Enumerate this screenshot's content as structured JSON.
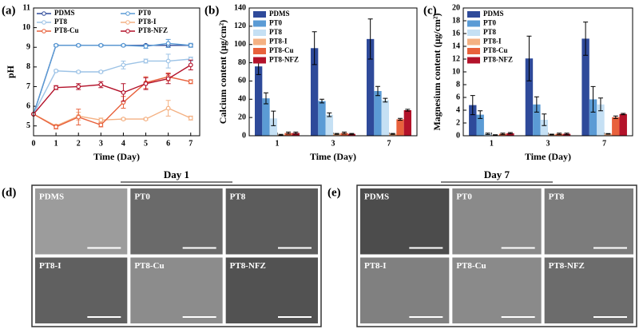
{
  "chart_data": [
    {
      "type": "line",
      "panel_label": "(a)",
      "xlabel": "Time (Day)",
      "ylabel": "pH",
      "x": [
        0,
        1,
        2,
        3,
        4,
        5,
        6,
        7
      ],
      "xlim": [
        0,
        7.4
      ],
      "xticks": [
        0,
        1,
        2,
        3,
        4,
        5,
        6,
        7
      ],
      "ylim": [
        4.5,
        11
      ],
      "yticks": [
        5,
        6,
        7,
        8,
        9,
        10,
        11
      ],
      "series": [
        {
          "name": "PDMS",
          "color": "#2e4a9a",
          "values": [
            5.6,
            9.1,
            9.1,
            9.1,
            9.1,
            9.1,
            9.1,
            9.1
          ],
          "errors": [
            0,
            0.05,
            0.05,
            0.05,
            0.05,
            0.05,
            0.1,
            0.05
          ]
        },
        {
          "name": "PT0",
          "color": "#5b9bd5",
          "values": [
            5.6,
            9.1,
            9.1,
            9.1,
            9.1,
            9.05,
            9.2,
            9.1
          ],
          "errors": [
            0,
            0.05,
            0.05,
            0.05,
            0.05,
            0.1,
            0.2,
            0.1
          ]
        },
        {
          "name": "PT8",
          "color": "#9dc3e6",
          "values": [
            5.6,
            7.8,
            7.75,
            7.75,
            8.1,
            8.3,
            8.3,
            8.4
          ],
          "errors": [
            0,
            0.05,
            0.05,
            0.05,
            0.2,
            0.1,
            0.35,
            0.1
          ]
        },
        {
          "name": "PT8-I",
          "color": "#f4b183",
          "values": [
            5.6,
            5.0,
            5.5,
            5.3,
            5.35,
            5.35,
            5.9,
            5.4
          ],
          "errors": [
            0,
            0.05,
            0.2,
            0.1,
            0.05,
            0.05,
            0.4,
            0.1
          ]
        },
        {
          "name": "PT8-Cu",
          "color": "#e8613c",
          "values": [
            5.6,
            4.95,
            5.45,
            5.05,
            6.2,
            7.2,
            7.5,
            7.25
          ],
          "errors": [
            0,
            0.1,
            0.4,
            0.1,
            0.3,
            0.3,
            0.2,
            0.1
          ]
        },
        {
          "name": "PT8-NFZ",
          "color": "#b3122a",
          "values": [
            5.6,
            6.95,
            7.0,
            7.1,
            6.7,
            7.15,
            7.4,
            8.1
          ],
          "errors": [
            0,
            0.1,
            0.15,
            0.15,
            0.45,
            0.3,
            0.25,
            0.25
          ]
        }
      ]
    },
    {
      "type": "bar",
      "panel_label": "(b)",
      "xlabel": "Time (Day)",
      "ylabel": "Calcium content (μg/cm²)",
      "categories": [
        "1",
        "3",
        "7"
      ],
      "ylim": [
        0,
        140
      ],
      "yticks": [
        0,
        20,
        40,
        60,
        80,
        100,
        120,
        140
      ],
      "series": [
        {
          "name": "PDMS",
          "color": "#2e4a9a",
          "values": [
            76,
            96,
            106
          ],
          "errors": [
            9,
            18,
            22
          ]
        },
        {
          "name": "PT0",
          "color": "#5b9bd5",
          "values": [
            41,
            38,
            49
          ],
          "errors": [
            6,
            2,
            5
          ]
        },
        {
          "name": "PT8",
          "color": "#c5e0f4",
          "values": [
            19,
            23,
            39
          ],
          "errors": [
            8,
            2,
            2
          ]
        },
        {
          "name": "PT8-I",
          "color": "#f4b183",
          "values": [
            1,
            2,
            2
          ],
          "errors": [
            0.5,
            0.5,
            0.5
          ]
        },
        {
          "name": "PT8-Cu",
          "color": "#e8613c",
          "values": [
            3,
            3,
            18
          ],
          "errors": [
            1,
            1,
            1
          ]
        },
        {
          "name": "PT8-NFZ",
          "color": "#b3122a",
          "values": [
            3,
            2,
            28
          ],
          "errors": [
            1,
            0.5,
            1
          ]
        }
      ]
    },
    {
      "type": "bar",
      "panel_label": "(c)",
      "xlabel": "Time (Day)",
      "ylabel": "Magnesium content (μg/cm²)",
      "categories": [
        "1",
        "3",
        "7"
      ],
      "ylim": [
        0,
        20
      ],
      "yticks": [
        0,
        2,
        4,
        6,
        8,
        10,
        12,
        14,
        16,
        18,
        20
      ],
      "series": [
        {
          "name": "PDMS",
          "color": "#2e4a9a",
          "values": [
            4.8,
            12.1,
            15.2
          ],
          "errors": [
            1.5,
            3.5,
            2.6
          ]
        },
        {
          "name": "PT0",
          "color": "#5b9bd5",
          "values": [
            3.3,
            4.9,
            5.7
          ],
          "errors": [
            0.6,
            1.2,
            2.0
          ]
        },
        {
          "name": "PT8",
          "color": "#c5e0f4",
          "values": [
            0.3,
            2.5,
            4.9
          ],
          "errors": [
            0.1,
            0.9,
            1.0
          ]
        },
        {
          "name": "PT8-I",
          "color": "#f4b183",
          "values": [
            0.1,
            0.2,
            0.3
          ],
          "errors": [
            0.05,
            0.05,
            0.05
          ]
        },
        {
          "name": "PT8-Cu",
          "color": "#e8613c",
          "values": [
            0.3,
            0.3,
            2.9
          ],
          "errors": [
            0.1,
            0.1,
            0.2
          ]
        },
        {
          "name": "PT8-NFZ",
          "color": "#b3122a",
          "values": [
            0.4,
            0.3,
            3.4
          ],
          "errors": [
            0.1,
            0.1,
            0.1
          ]
        }
      ]
    }
  ],
  "micrographs": [
    {
      "label": "(d)",
      "title": "Day 1",
      "images": [
        "PDMS",
        "PT0",
        "PT8",
        "PT8-I",
        "PT8-Cu",
        "PT8-NFZ"
      ]
    },
    {
      "label": "(e)",
      "title": "Day 7",
      "images": [
        "PDMS",
        "PT0",
        "PT8",
        "PT8-I",
        "PT8-Cu",
        "PT8-NFZ"
      ]
    }
  ]
}
